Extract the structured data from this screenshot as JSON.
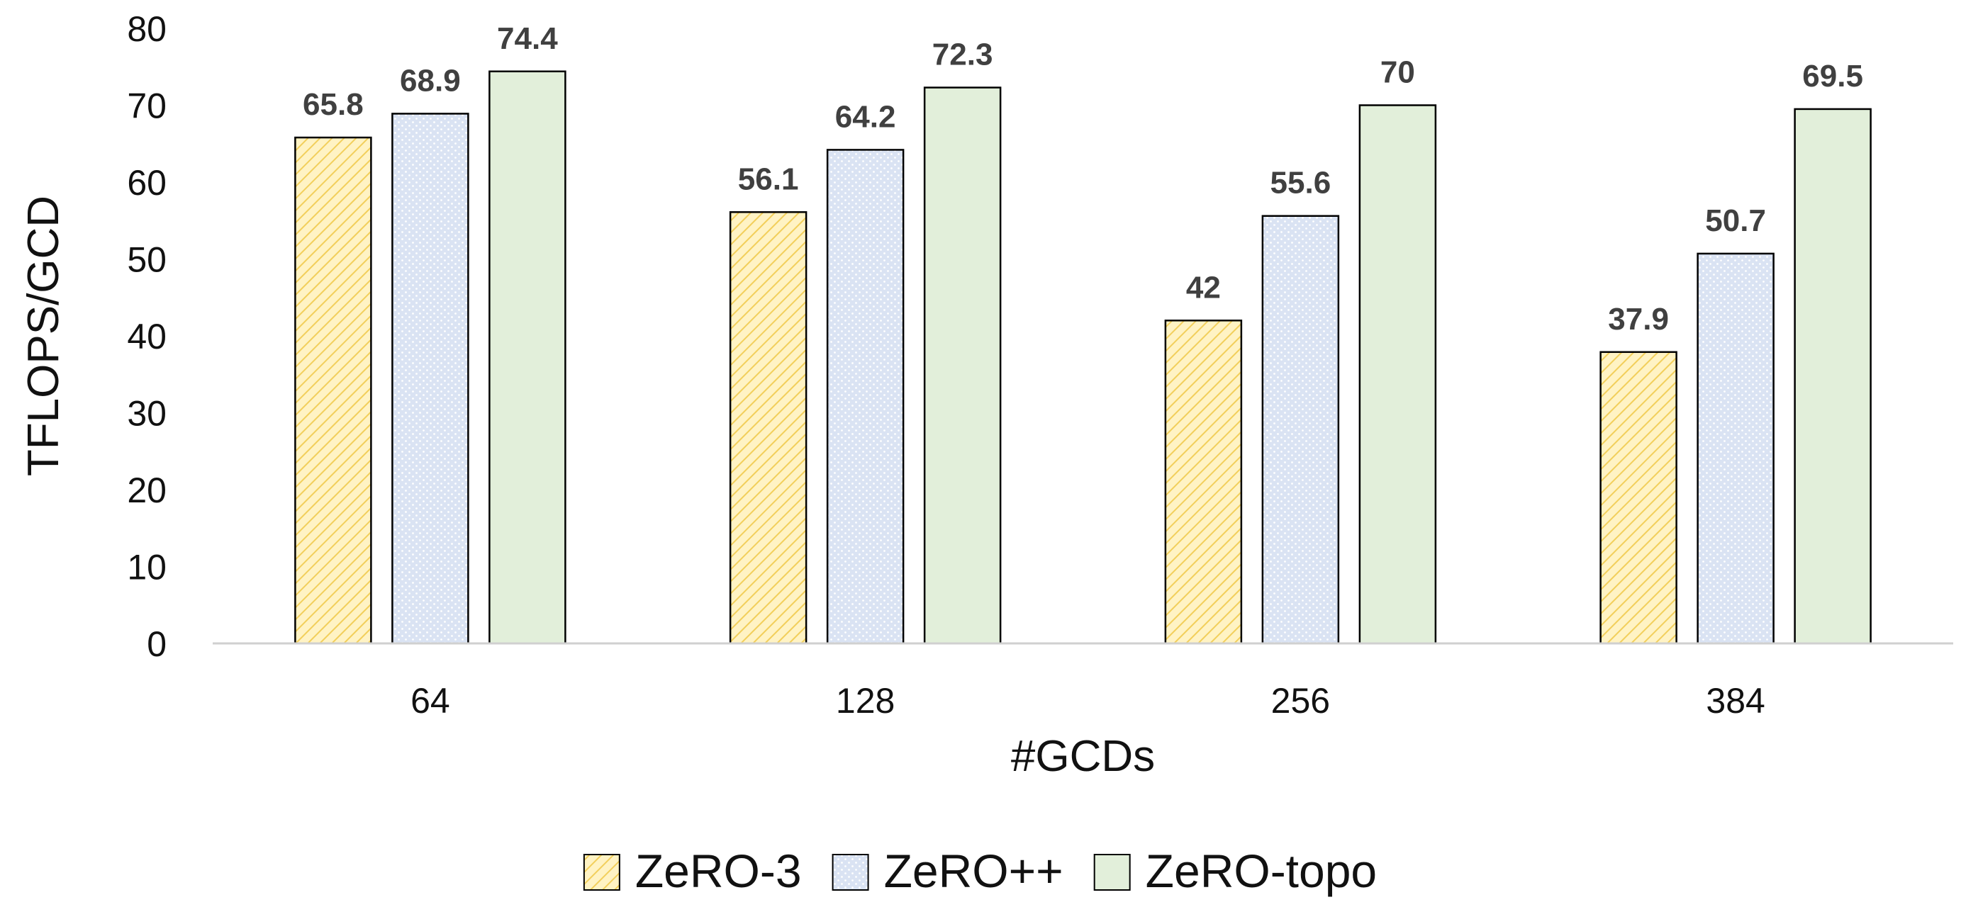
{
  "chart_data": {
    "type": "bar",
    "title": "",
    "xlabel": "#GCDs",
    "ylabel": "TFLOPS/GCD",
    "categories": [
      "64",
      "128",
      "256",
      "384"
    ],
    "ylim": [
      0,
      80
    ],
    "yticks": [
      0,
      10,
      20,
      30,
      40,
      50,
      60,
      70,
      80
    ],
    "grid": false,
    "legend_position": "bottom",
    "series": [
      {
        "name": "ZeRO-3",
        "values": [
          65.8,
          56.1,
          42,
          37.9
        ],
        "labels": [
          "65.8",
          "56.1",
          "42",
          "37.9"
        ],
        "fill": "#fff3c4",
        "hatch": "diagonal",
        "hatch_color": "#f2cf5b"
      },
      {
        "name": "ZeRO++",
        "values": [
          68.9,
          64.2,
          55.6,
          50.7
        ],
        "labels": [
          "68.9",
          "64.2",
          "55.6",
          "50.7"
        ],
        "fill": "#dae3f3",
        "hatch": "dots",
        "hatch_color": "#ffffff"
      },
      {
        "name": "ZeRO-topo",
        "values": [
          74.4,
          72.3,
          70,
          69.5
        ],
        "labels": [
          "74.4",
          "72.3",
          "70",
          "69.5"
        ],
        "fill": "#e2efda",
        "hatch": "none",
        "hatch_color": "#e2efda"
      }
    ]
  }
}
